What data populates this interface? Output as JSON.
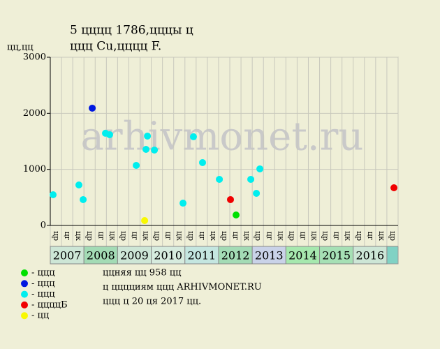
{
  "chart_data": {
    "type": "scatter",
    "title": "5 цццц 1786,цццы ц",
    "subtitle": "ццц Cu,цццц F.",
    "y_label": "цц,цц",
    "watermark": "arhivmonet.ru",
    "ylim": [
      0,
      3000
    ],
    "yticks": [
      0,
      1000,
      2000,
      3000
    ],
    "xlim": [
      0,
      31
    ],
    "grid": true,
    "columns": [
      "цр",
      "цг",
      "цк",
      "цр",
      "цг",
      "цк",
      "цр",
      "цг",
      "цк",
      "цр",
      "цг",
      "цк",
      "цр",
      "цг",
      "цк",
      "цр",
      "цг",
      "цк",
      "цр",
      "цг",
      "цк",
      "цр",
      "цг",
      "цк",
      "цр",
      "цг",
      "цк",
      "цр",
      "цг",
      "цк",
      "цр"
    ],
    "years": [
      {
        "label": "2007",
        "color": "#cde6d6"
      },
      {
        "label": "2008",
        "color": "#a3dbb5"
      },
      {
        "label": "2009",
        "color": "#cde6d6"
      },
      {
        "label": "2010",
        "color": "#d6ebde"
      },
      {
        "label": "2011",
        "color": "#c4e6e0"
      },
      {
        "label": "2012",
        "color": "#a3dbb5"
      },
      {
        "label": "2013",
        "color": "#c9d2e8"
      },
      {
        "label": "2014",
        "color": "#a6e8ae"
      },
      {
        "label": "2015",
        "color": "#a6e0b5"
      },
      {
        "label": "2016",
        "color": "#cde6d6"
      }
    ],
    "series": [
      {
        "name": "- ццц",
        "color": "#00e000",
        "x": [
          16.56
        ],
        "values": [
          187
        ]
      },
      {
        "name": "- ццц",
        "color": "#0018e0",
        "x": [
          3.74
        ],
        "values": [
          2092
        ]
      },
      {
        "name": "- ццц",
        "color": "#00eeee",
        "x": [
          0.25,
          2.55,
          2.93,
          4.92,
          5.29,
          7.66,
          8.53,
          8.66,
          9.28,
          11.83,
          12.76,
          13.57,
          15.07,
          17.87,
          18.37,
          18.68
        ],
        "values": [
          548,
          722,
          461,
          1644,
          1619,
          1071,
          1357,
          1594,
          1345,
          398,
          1582,
          1121,
          822,
          822,
          573,
          1009
        ]
      },
      {
        "name": "- ццццБ",
        "color": "#f00000",
        "x": [
          16.06,
          30.63
        ],
        "values": [
          461,
          672
        ]
      },
      {
        "name": "- цц",
        "color": "#f8f800",
        "x": [
          8.41
        ],
        "values": [
          87
        ]
      }
    ],
    "notes": [
      "ццняя цц 958 цц",
      "ц цццциям ццц ARHIVMONET.RU",
      "ццц ц 20 ця 2017 цц."
    ]
  }
}
